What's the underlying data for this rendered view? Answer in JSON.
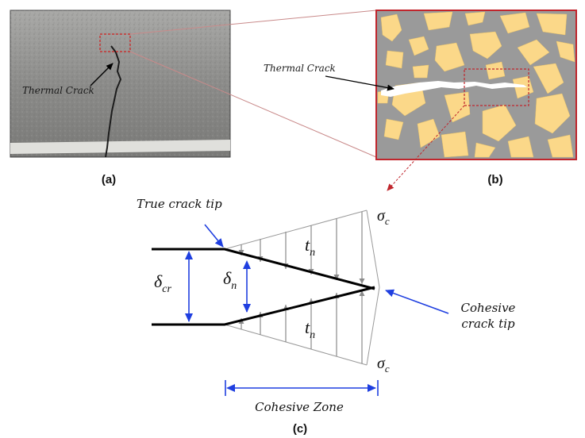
{
  "panels": {
    "a": {
      "label": "(a)",
      "annotation": "Thermal Crack"
    },
    "b": {
      "label": "(b)",
      "annotation": "Thermal Crack"
    },
    "c": {
      "label": "(c)"
    }
  },
  "diagram": {
    "true_crack_tip": "True crack tip",
    "cohesive_crack_tip_line1": "Cohesive",
    "cohesive_crack_tip_line2": "crack tip",
    "cohesive_zone": "Cohesive Zone",
    "symbols": {
      "sigma": "σ",
      "sigma_sub": "c",
      "t": "t",
      "t_sub": "n",
      "delta": "δ",
      "delta_cr_sub": "cr",
      "delta_n_sub": "n"
    }
  },
  "colors": {
    "asphalt": "#8f8f8d",
    "frame_red": "#c0262d",
    "zoom_lines": "#c98a8a",
    "matrix_gray": "#9a9a9a",
    "aggregate_yellow": "#fbd889",
    "arrow_blue": "#1f3fe0",
    "traction_gray": "#909090"
  }
}
